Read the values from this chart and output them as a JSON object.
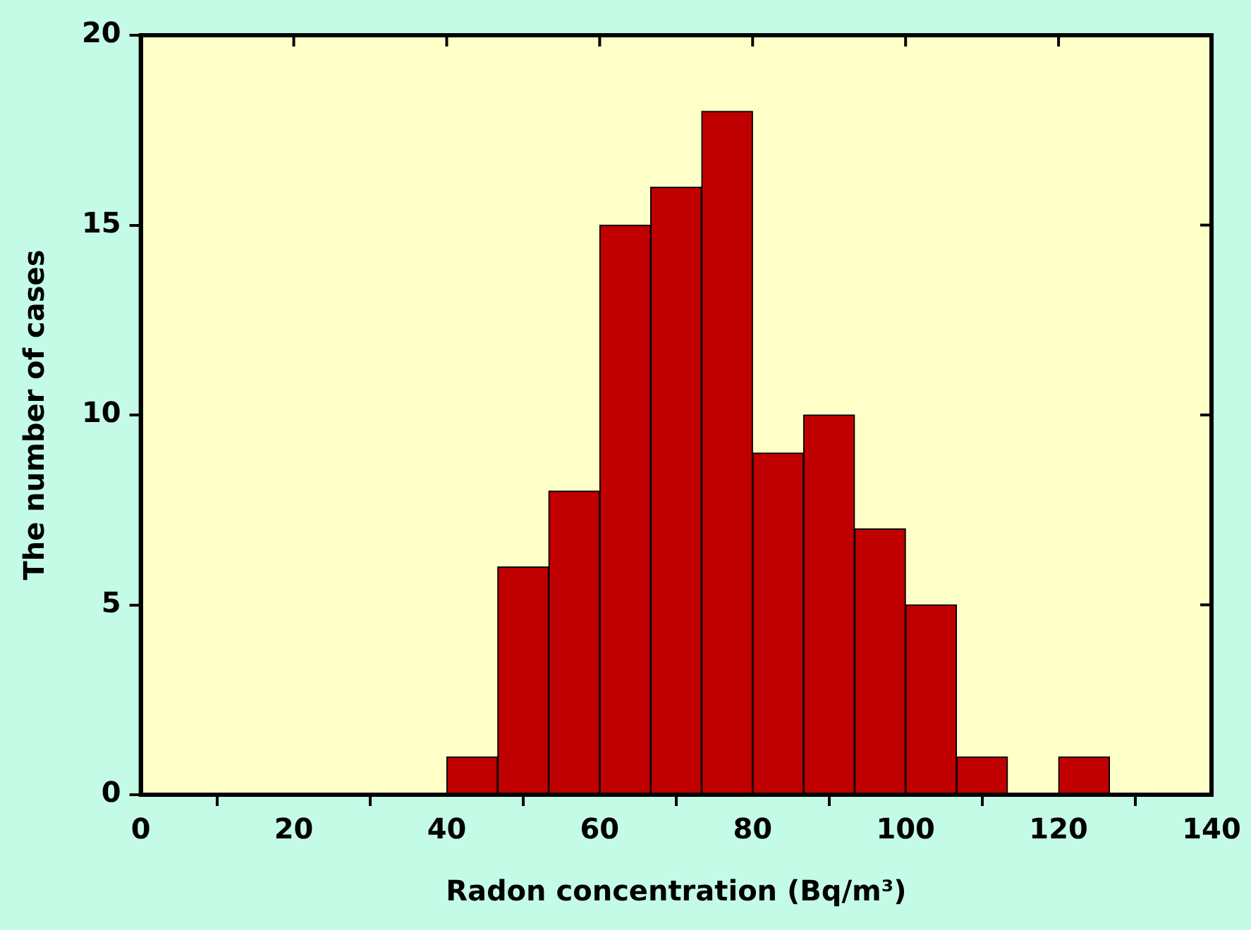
{
  "chart_data": {
    "type": "histogram",
    "bins": [
      40,
      46.67,
      53.33,
      60,
      66.67,
      73.33,
      80,
      86.67,
      93.33,
      100,
      106.67,
      113.33,
      120,
      126.67
    ],
    "values": [
      1,
      6,
      8,
      15,
      16,
      18,
      9,
      10,
      7,
      5,
      1,
      0,
      1
    ],
    "color": "#c00000",
    "xlabel": "Radon concentration (Bq/m³)",
    "ylabel": "The number of cases",
    "xlim": [
      0,
      140
    ],
    "xticks": [
      0,
      20,
      40,
      60,
      80,
      100,
      120,
      140
    ],
    "ylim": [
      0,
      20
    ],
    "yticks": [
      0,
      5,
      10,
      15,
      20
    ],
    "grid": false,
    "legend": false
  }
}
